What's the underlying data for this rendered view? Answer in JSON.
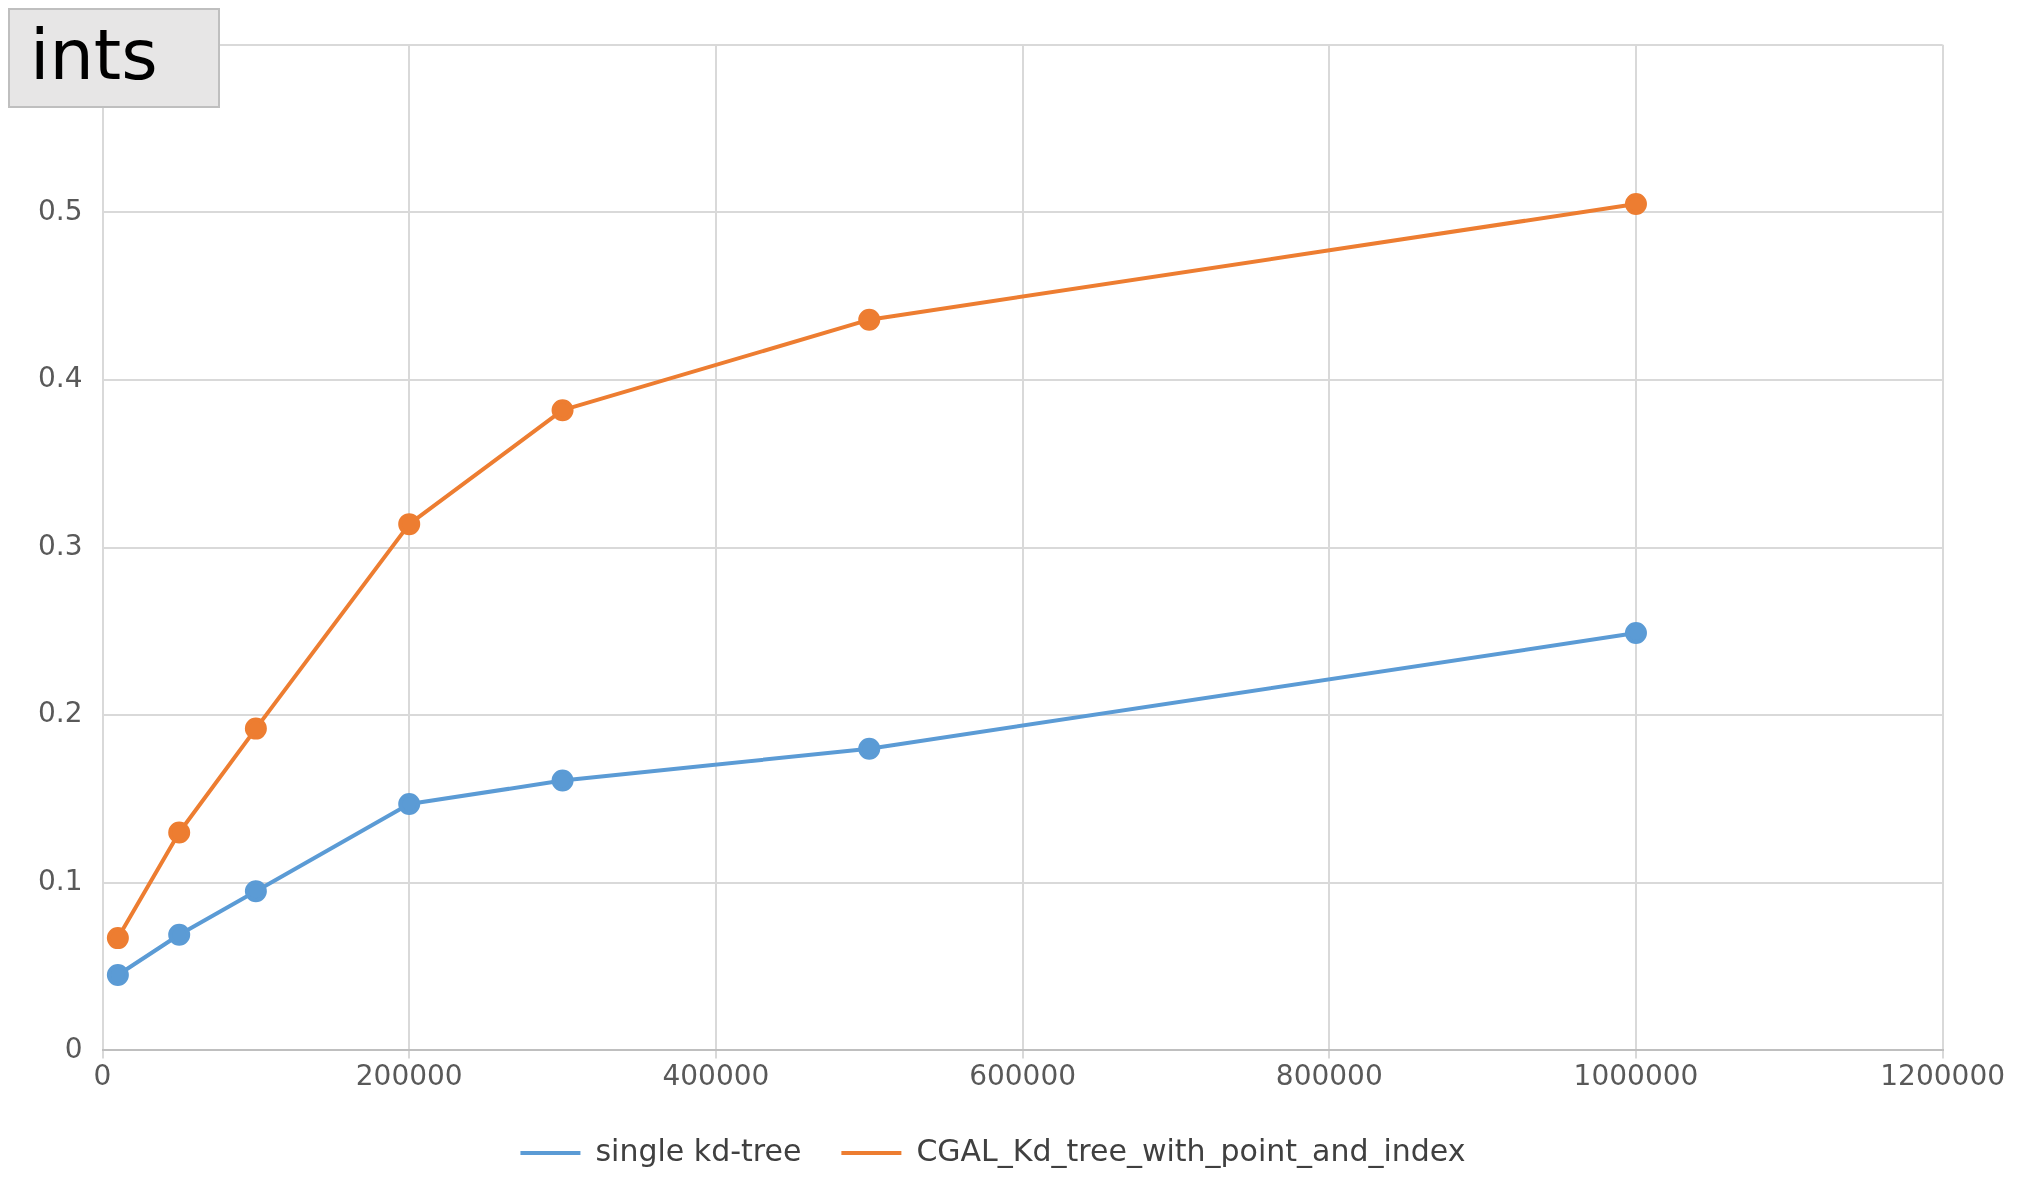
{
  "chart_data": {
    "type": "line",
    "title": "ints",
    "x": [
      10000,
      50000,
      100000,
      200000,
      300000,
      500000,
      1000000
    ],
    "series": [
      {
        "name": "single kd-tree",
        "color": "#5b9bd5",
        "values": [
          0.045,
          0.069,
          0.095,
          0.147,
          0.161,
          0.18,
          0.249
        ]
      },
      {
        "name": "CGAL_Kd_tree_with_point_and_index",
        "color": "#ed7d31",
        "values": [
          0.067,
          0.13,
          0.192,
          0.314,
          0.382,
          0.436,
          0.505
        ]
      }
    ],
    "xlim": [
      0,
      1200000
    ],
    "xticks": [
      0,
      200000,
      400000,
      600000,
      800000,
      1000000,
      1200000
    ],
    "ylim": [
      0,
      0.6
    ],
    "yticks": [
      0,
      0.1,
      0.2,
      0.3,
      0.4,
      0.5,
      {
        "value": 0.6,
        "label": null
      }
    ],
    "grid": true,
    "legend": "bottom",
    "marker": "circle",
    "line_style": "solid"
  }
}
